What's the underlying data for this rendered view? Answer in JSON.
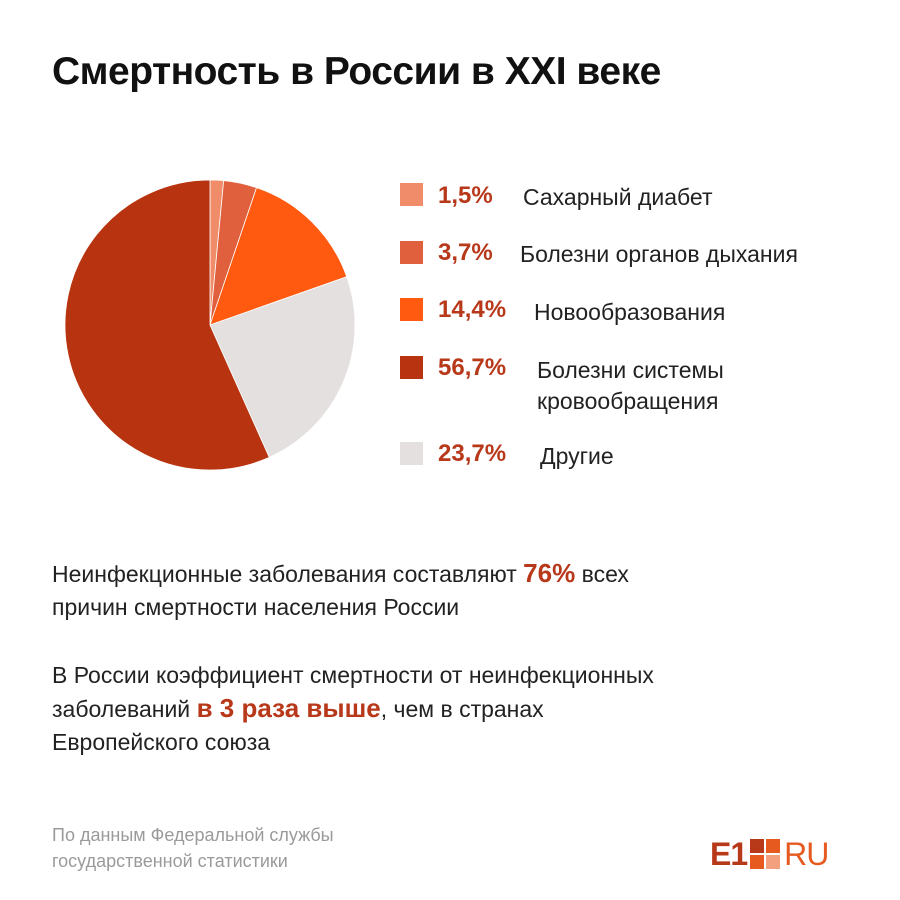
{
  "title": "Смертность в России в XXI веке",
  "chart_data": {
    "type": "pie",
    "slices": [
      {
        "value": 1.5,
        "pct_label": "1,5%",
        "label": "Сахарный диабет",
        "color": "#f08c6a"
      },
      {
        "value": 3.7,
        "pct_label": "3,7%",
        "label": "Болезни органов дыхания",
        "color": "#e0603e"
      },
      {
        "value": 14.4,
        "pct_label": "14,4%",
        "label": "Новообразования",
        "color": "#ff5a10"
      },
      {
        "value": 56.7,
        "pct_label": "56,7%",
        "label_lines": [
          "Болезни системы",
          "кровообращения"
        ],
        "color": "#b8330f"
      },
      {
        "value": 23.7,
        "pct_label": "23,7%",
        "label": "Другие",
        "color": "#e4e0e0"
      }
    ]
  },
  "facts": {
    "p1_pre": "Неинфекционные заболевания составляют ",
    "p1_hl": "76%",
    "p1_post": " всех",
    "p1_line2": "причин смертности населения России",
    "p2_line1": "В России коэффициент смертности от неинфекционных",
    "p2_pre": "заболеваний ",
    "p2_hl": "в 3 раза выше",
    "p2_post": ", чем в странах",
    "p2_line3": "Европейского союза"
  },
  "source": {
    "line1": "По данным Федеральной службы",
    "line2": "государственной статистики"
  },
  "logo": {
    "left": "E1",
    "right": "RU",
    "colors": [
      "#b8381a",
      "#e65a20"
    ]
  }
}
